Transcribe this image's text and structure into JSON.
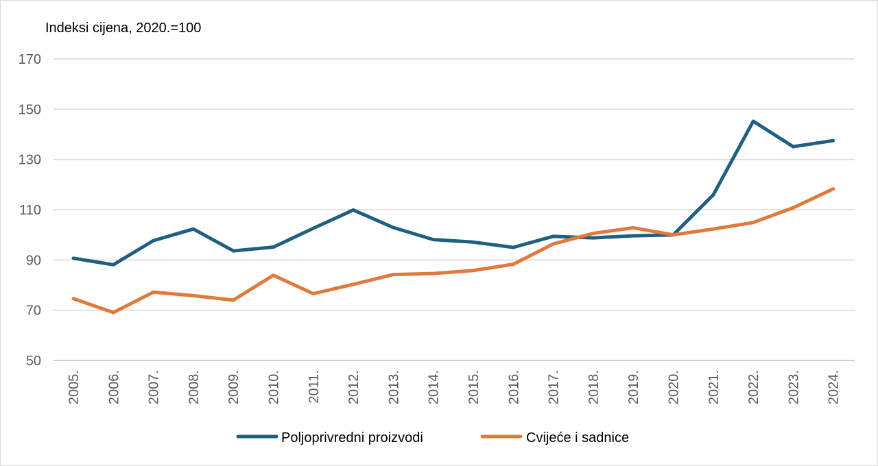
{
  "chart_data": {
    "type": "line",
    "title": "Indeksi cijena, 2020.=100",
    "xlabel": "",
    "ylabel": "",
    "ylim": [
      50,
      170
    ],
    "yticks": [
      50,
      70,
      90,
      110,
      130,
      150,
      170
    ],
    "grid": true,
    "legend_position": "bottom",
    "categories": [
      "2005.",
      "2006.",
      "2007.",
      "2008.",
      "2009.",
      "2010.",
      "2011.",
      "2012.",
      "2013.",
      "2014.",
      "2015.",
      "2016.",
      "2017.",
      "2018.",
      "2019.",
      "2020.",
      "2021.",
      "2022.",
      "2023.",
      "2024."
    ],
    "series": [
      {
        "name": "Poljoprivredni proizvodi",
        "color": "#1f6080",
        "values": [
          90.7,
          88.1,
          97.7,
          102.3,
          93.6,
          95.1,
          102.6,
          109.9,
          102.9,
          98.1,
          97.1,
          95.0,
          99.4,
          98.8,
          99.6,
          100.0,
          115.9,
          145.2,
          135.1,
          137.5
        ]
      },
      {
        "name": "Cvijeće i sadnice",
        "color": "#e07a3c",
        "values": [
          74.6,
          69.1,
          77.2,
          75.8,
          74.0,
          83.9,
          76.6,
          80.3,
          84.2,
          84.6,
          85.8,
          88.3,
          96.4,
          100.6,
          102.8,
          100.0,
          102.3,
          104.9,
          110.8,
          118.3
        ]
      }
    ]
  }
}
